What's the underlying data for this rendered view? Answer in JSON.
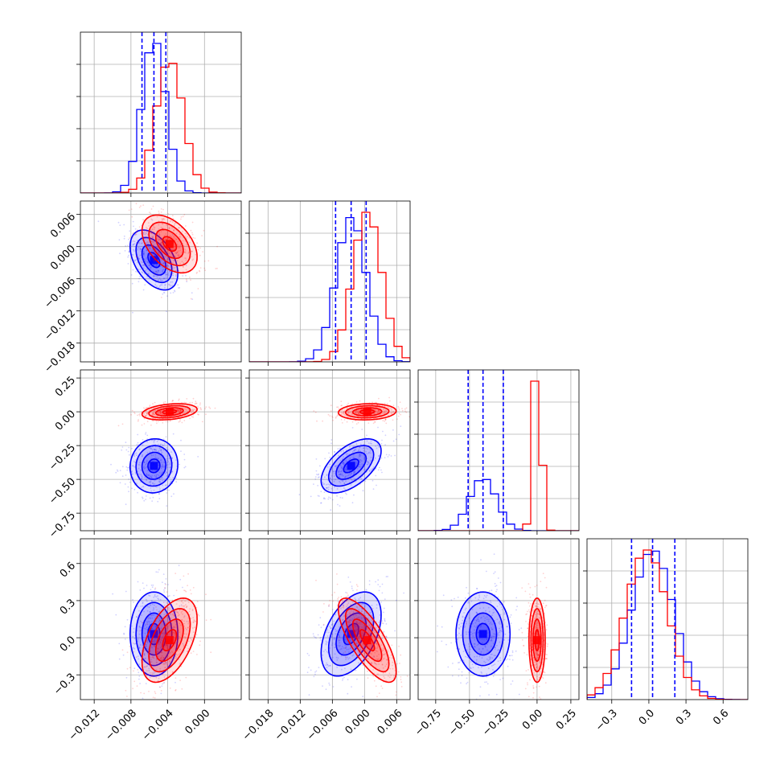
{
  "chart_data": {
    "type": "corner",
    "params": [
      {
        "key": "p0",
        "range": [
          -0.0135,
          0.004
        ],
        "ticks": [
          -0.012,
          -0.008,
          -0.004,
          0.0
        ],
        "tick_labels": [
          "−0.012",
          "−0.008",
          "−0.004",
          "0.000"
        ]
      },
      {
        "key": "p1",
        "range": [
          -0.0215,
          0.0085
        ],
        "ticks": [
          -0.018,
          -0.012,
          -0.006,
          0.0,
          0.006
        ],
        "tick_labels": [
          "−0.018",
          "−0.012",
          "−0.006",
          "0.000",
          "0.006"
        ]
      },
      {
        "key": "p2",
        "range": [
          -0.88,
          0.31
        ],
        "ticks": [
          -0.75,
          -0.5,
          -0.25,
          0.0,
          0.25
        ],
        "tick_labels": [
          "−0.75",
          "−0.50",
          "−0.25",
          "0.00",
          "0.25"
        ]
      },
      {
        "key": "p3",
        "range": [
          -0.5,
          0.8
        ],
        "ticks": [
          -0.3,
          0.0,
          0.3,
          0.6
        ],
        "tick_labels": [
          "−0.3",
          "0.0",
          "0.3",
          "0.6"
        ]
      }
    ],
    "series": [
      {
        "color": "#0000ff",
        "mean": [
          -0.0055,
          -0.0025,
          -0.4,
          0.03
        ],
        "std": [
          0.0013,
          0.0028,
          0.1,
          0.17
        ],
        "corr": [
          [
            1.0,
            -0.45,
            0.05,
            0.0
          ],
          [
            -0.45,
            1.0,
            0.55,
            0.45
          ],
          [
            0.05,
            0.55,
            1.0,
            0.0
          ],
          [
            0.0,
            0.45,
            0.0,
            1.0
          ]
        ],
        "quantiles": [
          [
            -0.0068,
            -0.0055,
            -0.0042
          ],
          [
            -0.0054,
            -0.0025,
            0.0003
          ],
          [
            -0.51,
            -0.4,
            -0.25
          ],
          [
            -0.14,
            0.03,
            0.21
          ]
        ]
      },
      {
        "color": "#ff0000",
        "mean": [
          -0.0038,
          0.0005,
          0.0,
          -0.02
        ],
        "std": [
          0.0015,
          0.0027,
          0.03,
          0.17
        ],
        "corr": [
          [
            1.0,
            -0.45,
            0.3,
            0.5
          ],
          [
            -0.45,
            1.0,
            0.1,
            -0.75
          ],
          [
            0.3,
            0.1,
            1.0,
            0.0
          ],
          [
            0.5,
            -0.75,
            0.0,
            1.0
          ]
        ]
      }
    ]
  }
}
